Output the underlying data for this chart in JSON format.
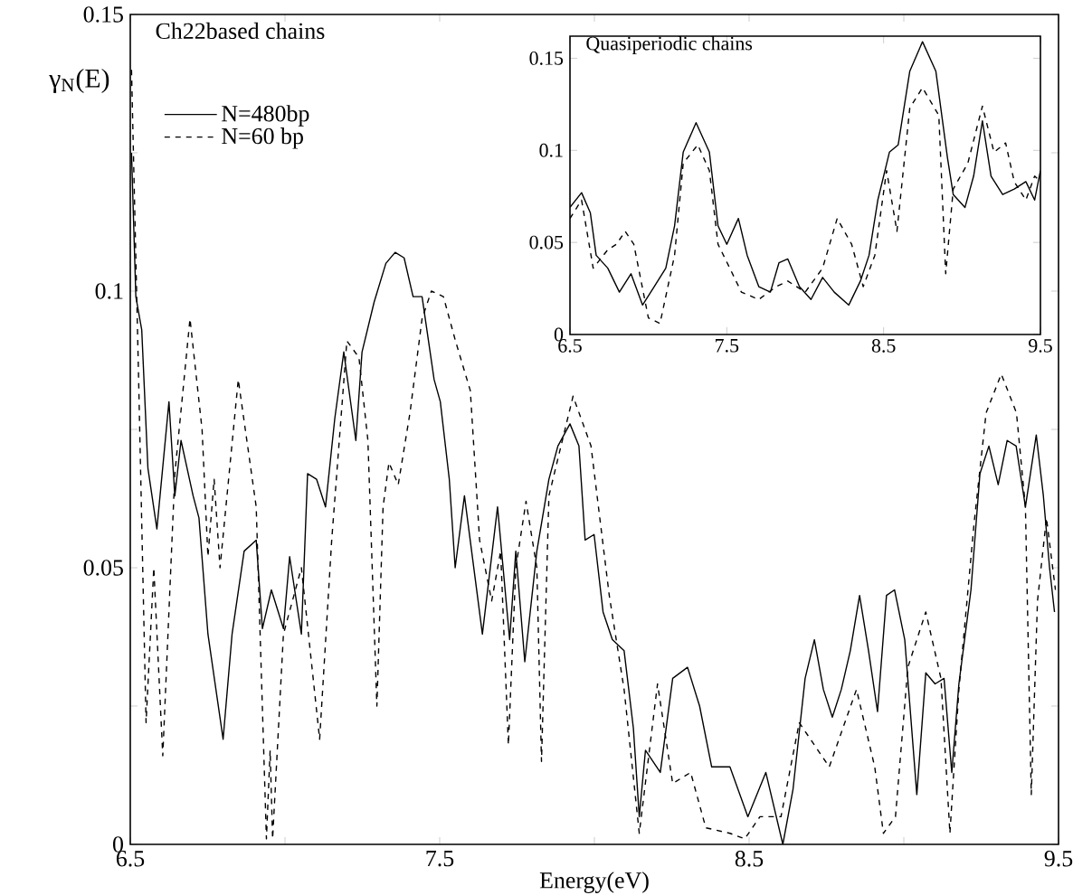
{
  "chart_data": [
    {
      "type": "line",
      "title": "Ch22based chains",
      "xlabel": "Energy(eV)",
      "ylabel": "γ$_{N}$(E)",
      "legend": "top left",
      "xlim": [
        6.5,
        9.5
      ],
      "ylim": [
        0,
        0.15
      ],
      "xticks": [
        6.5,
        {
          "value": 7,
          "label": null
        },
        7.5,
        {
          "value": 8,
          "label": null
        },
        8.5,
        {
          "value": 9,
          "label": null
        },
        9.5
      ],
      "yticks": [
        0,
        {
          "value": 0.025,
          "label": null
        },
        0.05,
        {
          "value": 0.075,
          "label": null
        },
        0.1,
        {
          "value": 0.125,
          "label": null
        },
        0.15
      ],
      "series": [
        {
          "name": "N=480bp",
          "color": "#000000",
          "line_style": "solid",
          "x": [
            6.504,
            6.518,
            6.537,
            6.557,
            6.586,
            6.625,
            6.644,
            6.664,
            6.703,
            6.722,
            6.751,
            6.8,
            6.829,
            6.868,
            6.907,
            6.927,
            6.956,
            6.995,
            7.015,
            7.053,
            7.073,
            7.102,
            7.131,
            7.161,
            7.19,
            7.229,
            7.249,
            7.288,
            7.326,
            7.356,
            7.385,
            7.414,
            7.443,
            7.482,
            7.502,
            7.531,
            7.55,
            7.58,
            7.638,
            7.687,
            7.726,
            7.746,
            7.775,
            7.814,
            7.853,
            7.882,
            7.921,
            7.95,
            7.97,
            7.999,
            8.028,
            8.058,
            8.096,
            8.126,
            8.145,
            8.165,
            8.213,
            8.253,
            8.301,
            8.34,
            8.379,
            8.438,
            8.496,
            8.554,
            8.609,
            8.642,
            8.681,
            8.711,
            8.74,
            8.769,
            8.798,
            8.827,
            8.857,
            8.886,
            8.915,
            8.944,
            8.97,
            9.003,
            9.042,
            9.071,
            9.101,
            9.13,
            9.155,
            9.178,
            9.217,
            9.246,
            9.275,
            9.305,
            9.334,
            9.363,
            9.393,
            9.428,
            9.451,
            9.471,
            9.487
          ],
          "values": [
            0.125,
            0.099,
            0.093,
            0.068,
            0.057,
            0.08,
            0.063,
            0.073,
            0.063,
            0.059,
            0.038,
            0.019,
            0.038,
            0.053,
            0.055,
            0.039,
            0.046,
            0.039,
            0.052,
            0.038,
            0.067,
            0.066,
            0.061,
            0.077,
            0.089,
            0.073,
            0.089,
            0.098,
            0.105,
            0.107,
            0.106,
            0.099,
            0.099,
            0.084,
            0.08,
            0.066,
            0.05,
            0.063,
            0.038,
            0.061,
            0.037,
            0.053,
            0.033,
            0.053,
            0.066,
            0.072,
            0.076,
            0.072,
            0.055,
            0.056,
            0.042,
            0.037,
            0.035,
            0.021,
            0.005,
            0.017,
            0.013,
            0.03,
            0.032,
            0.025,
            0.014,
            0.014,
            0.005,
            0.013,
            0,
            0.01,
            0.03,
            0.037,
            0.028,
            0.023,
            0.028,
            0.035,
            0.045,
            0.035,
            0.024,
            0.045,
            0.046,
            0.037,
            0.009,
            0.031,
            0.029,
            0.03,
            0.013,
            0.029,
            0.046,
            0.067,
            0.072,
            0.065,
            0.073,
            0.072,
            0.061,
            0.074,
            0.063,
            0.05,
            0.042
          ]
        },
        {
          "name": "N=60 bp",
          "color": "#000000",
          "line_style": "dashed",
          "x": [
            6.504,
            6.527,
            6.551,
            6.576,
            6.605,
            6.644,
            6.693,
            6.732,
            6.751,
            6.771,
            6.79,
            6.849,
            6.907,
            6.94,
            6.952,
            6.96,
            6.995,
            7.053,
            7.112,
            7.151,
            7.2,
            7.239,
            7.268,
            7.297,
            7.317,
            7.336,
            7.366,
            7.404,
            7.443,
            7.473,
            7.512,
            7.551,
            7.599,
            7.629,
            7.668,
            7.697,
            7.722,
            7.746,
            7.779,
            7.814,
            7.829,
            7.853,
            7.931,
            7.989,
            8.048,
            8.096,
            8.145,
            8.204,
            8.253,
            8.311,
            8.36,
            8.438,
            8.486,
            8.535,
            8.603,
            8.662,
            8.759,
            8.847,
            8.906,
            8.934,
            8.973,
            9.013,
            9.071,
            9.12,
            9.149,
            9.178,
            9.227,
            9.266,
            9.315,
            9.364,
            9.393,
            9.412,
            9.432,
            9.461,
            9.49
          ],
          "values": [
            0.14,
            0.084,
            0.022,
            0.05,
            0.016,
            0.067,
            0.095,
            0.075,
            0.052,
            0.066,
            0.05,
            0.084,
            0.061,
            0.001,
            0.017,
            0.001,
            0.038,
            0.05,
            0.019,
            0.055,
            0.091,
            0.088,
            0.073,
            0.025,
            0.061,
            0.069,
            0.065,
            0.078,
            0.095,
            0.1,
            0.099,
            0.091,
            0.082,
            0.055,
            0.044,
            0.053,
            0.018,
            0.05,
            0.062,
            0.05,
            0.015,
            0.063,
            0.081,
            0.072,
            0.045,
            0.028,
            0.002,
            0.029,
            0.011,
            0.013,
            0.003,
            0.002,
            0.001,
            0.005,
            0.005,
            0.022,
            0.014,
            0.028,
            0.014,
            0.002,
            0.005,
            0.032,
            0.042,
            0.03,
            0.002,
            0.028,
            0.058,
            0.078,
            0.085,
            0.078,
            0.061,
            0.009,
            0.044,
            0.059,
            0.046
          ]
        }
      ]
    },
    {
      "type": "line",
      "title": "Quasiperiodic chains",
      "xlim": [
        6.5,
        9.5
      ],
      "ylim": [
        0,
        0.162
      ],
      "xticks": [
        6.5,
        7.5,
        8.5,
        9.5
      ],
      "yticks": [
        0,
        0.05,
        0.1,
        0.15
      ],
      "series": [
        {
          "color": "#000000",
          "line_style": "solid",
          "x": [
            6.5,
            6.574,
            6.63,
            6.667,
            6.741,
            6.815,
            6.889,
            6.963,
            7.037,
            7.111,
            7.167,
            7.222,
            7.304,
            7.389,
            7.444,
            7.5,
            7.574,
            7.63,
            7.704,
            7.778,
            7.833,
            7.889,
            7.963,
            8.037,
            8.111,
            8.185,
            8.278,
            8.352,
            8.407,
            8.463,
            8.537,
            8.593,
            8.667,
            8.748,
            8.833,
            8.907,
            8.944,
            9.019,
            9.074,
            9.13,
            9.185,
            9.259,
            9.333,
            9.407,
            9.463,
            9.5
          ],
          "values": [
            0.069,
            0.077,
            0.066,
            0.043,
            0.036,
            0.023,
            0.033,
            0.016,
            0.026,
            0.036,
            0.059,
            0.099,
            0.115,
            0.099,
            0.059,
            0.049,
            0.063,
            0.043,
            0.026,
            0.023,
            0.039,
            0.041,
            0.026,
            0.019,
            0.031,
            0.023,
            0.016,
            0.029,
            0.043,
            0.073,
            0.099,
            0.103,
            0.143,
            0.159,
            0.143,
            0.096,
            0.076,
            0.069,
            0.086,
            0.116,
            0.086,
            0.076,
            0.079,
            0.083,
            0.073,
            0.089
          ]
        },
        {
          "color": "#000000",
          "line_style": "dashed",
          "x": [
            6.5,
            6.574,
            6.648,
            6.741,
            6.796,
            6.852,
            6.907,
            7.0,
            7.074,
            7.167,
            7.222,
            7.315,
            7.389,
            7.444,
            7.519,
            7.593,
            7.704,
            7.815,
            7.889,
            8.0,
            8.111,
            8.204,
            8.296,
            8.37,
            8.444,
            8.519,
            8.585,
            8.667,
            8.748,
            8.852,
            8.896,
            8.944,
            9.037,
            9.13,
            9.204,
            9.278,
            9.333,
            9.407,
            9.463,
            9.5
          ],
          "values": [
            0.063,
            0.073,
            0.036,
            0.046,
            0.049,
            0.056,
            0.049,
            0.009,
            0.006,
            0.043,
            0.093,
            0.103,
            0.089,
            0.049,
            0.036,
            0.023,
            0.019,
            0.026,
            0.029,
            0.023,
            0.036,
            0.063,
            0.049,
            0.026,
            0.043,
            0.089,
            0.056,
            0.123,
            0.134,
            0.119,
            0.033,
            0.079,
            0.093,
            0.124,
            0.099,
            0.104,
            0.083,
            0.073,
            0.086,
            0.083
          ]
        }
      ]
    }
  ]
}
